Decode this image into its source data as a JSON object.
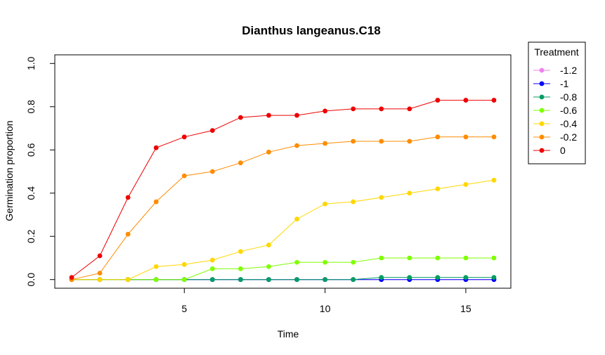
{
  "chart_data": {
    "type": "line",
    "title": "Dianthus langeanus.C18",
    "xlabel": "Time",
    "ylabel": "Germination proportion",
    "xlim": [
      0.4,
      16.6
    ],
    "ylim": [
      -0.04,
      1.04
    ],
    "xticks": [
      5,
      10,
      15
    ],
    "yticks": [
      0.0,
      0.2,
      0.4,
      0.6,
      0.8,
      1.0
    ],
    "xtick_labels": [
      "5",
      "10",
      "15"
    ],
    "ytick_labels": [
      "0.0",
      "0.2",
      "0.4",
      "0.6",
      "0.8",
      "1.0"
    ],
    "grid": false,
    "legend": {
      "title": "Treatment",
      "position": "right"
    },
    "x": [
      1,
      2,
      3,
      4,
      5,
      6,
      7,
      8,
      9,
      10,
      11,
      12,
      13,
      14,
      15,
      16
    ],
    "series": [
      {
        "name": "-1.2",
        "color": "#ee82ee",
        "values": [
          0,
          0,
          0,
          0,
          0,
          0,
          0,
          0,
          0,
          0,
          0,
          0,
          0,
          0,
          0,
          0
        ]
      },
      {
        "name": "-1",
        "color": "#0000ff",
        "values": [
          0,
          0,
          0,
          0,
          0,
          0,
          0,
          0,
          0,
          0,
          0,
          0,
          0,
          0,
          0,
          0
        ]
      },
      {
        "name": "-0.8",
        "color": "#009e60",
        "values": [
          0,
          0,
          0,
          0,
          0,
          0,
          0,
          0,
          0,
          0,
          0,
          0.01,
          0.01,
          0.01,
          0.01,
          0.01
        ]
      },
      {
        "name": "-0.6",
        "color": "#7fff00",
        "values": [
          0,
          0,
          0,
          0,
          0,
          0.05,
          0.05,
          0.06,
          0.08,
          0.08,
          0.08,
          0.1,
          0.1,
          0.1,
          0.1,
          0.1
        ]
      },
      {
        "name": "-0.4",
        "color": "#ffd700",
        "values": [
          0,
          0,
          0,
          0.06,
          0.07,
          0.09,
          0.13,
          0.16,
          0.28,
          0.35,
          0.36,
          0.38,
          0.4,
          0.42,
          0.44,
          0.46
        ]
      },
      {
        "name": "-0.2",
        "color": "#ff8c00",
        "values": [
          0,
          0.03,
          0.21,
          0.36,
          0.48,
          0.5,
          0.54,
          0.59,
          0.62,
          0.63,
          0.64,
          0.64,
          0.64,
          0.66,
          0.66,
          0.66
        ]
      },
      {
        "name": "0",
        "color": "#ee0000",
        "values": [
          0.01,
          0.11,
          0.38,
          0.61,
          0.66,
          0.69,
          0.75,
          0.76,
          0.76,
          0.78,
          0.79,
          0.79,
          0.79,
          0.83,
          0.83,
          0.83
        ]
      }
    ]
  }
}
